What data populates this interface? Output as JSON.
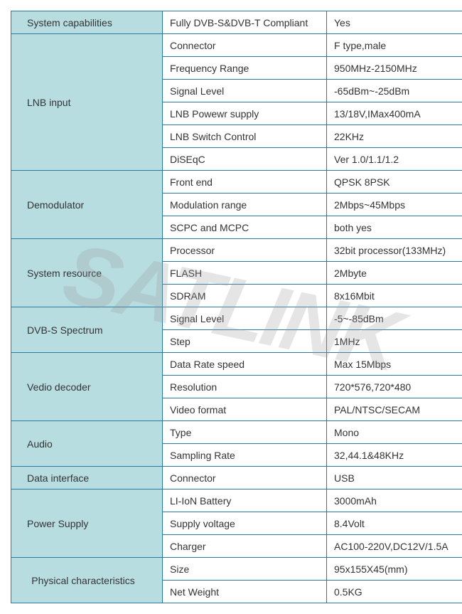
{
  "table": {
    "border_color": "#2a7aa0",
    "category_bg": "#b8dde0",
    "text_color": "#333333",
    "font_size": 14,
    "sections": [
      {
        "category": "System capabilities",
        "rows": [
          {
            "prop": "Fully DVB-S&DVB-T Compliant",
            "val": "Yes"
          }
        ]
      },
      {
        "category": "LNB input",
        "rows": [
          {
            "prop": "Connector",
            "val": "F type,male"
          },
          {
            "prop": "Frequency Range",
            "val": "950MHz-2150MHz"
          },
          {
            "prop": "Signal Level",
            "val": "-65dBm~-25dBm"
          },
          {
            "prop": "LNB Powewr supply",
            "val": "13/18V,IMax400mA"
          },
          {
            "prop": "LNB Switch Control",
            "val": "22KHz"
          },
          {
            "prop": "DiSEqC",
            "val": "Ver 1.0/1.1/1.2"
          }
        ]
      },
      {
        "category": "Demodulator",
        "rows": [
          {
            "prop": "Front end",
            "val": "QPSK 8PSK"
          },
          {
            "prop": "Modulation range",
            "val": "2Mbps~45Mbps"
          },
          {
            "prop": "SCPC and MCPC",
            "val": "both yes"
          }
        ]
      },
      {
        "category": "System resource",
        "rows": [
          {
            "prop": "Processor",
            "val": "32bit processor(133MHz)"
          },
          {
            "prop": "FLASH",
            "val": "2Mbyte"
          },
          {
            "prop": "SDRAM",
            "val": "8x16Mbit"
          }
        ]
      },
      {
        "category": "DVB-S Spectrum",
        "rows": [
          {
            "prop": "Signal Level",
            "val": "-5~-85dBm"
          },
          {
            "prop": "Step",
            "val": "1MHz"
          }
        ]
      },
      {
        "category": "Vedio decoder",
        "rows": [
          {
            "prop": "Data Rate speed",
            "val": "Max 15Mbps"
          },
          {
            "prop": "Resolution",
            "val": "720*576,720*480"
          },
          {
            "prop": "Video format",
            "val": "PAL/NTSC/SECAM"
          }
        ]
      },
      {
        "category": "Audio",
        "rows": [
          {
            "prop": "Type",
            "val": "Mono"
          },
          {
            "prop": "Sampling Rate",
            "val": "32,44.1&48KHz"
          }
        ]
      },
      {
        "category": "Data interface",
        "rows": [
          {
            "prop": "Connector",
            "val": "USB"
          }
        ]
      },
      {
        "category": "Power Supply",
        "rows": [
          {
            "prop": "LI-IoN  Battery",
            "val": "3000mAh"
          },
          {
            "prop": "Supply voltage",
            "val": "8.4Volt"
          },
          {
            "prop": "Charger",
            "val": "AC100-220V,DC12V/1.5A"
          }
        ]
      },
      {
        "category": "Physical characteristics",
        "center": true,
        "rows": [
          {
            "prop": "Size",
            "val": "95x155X45(mm)"
          },
          {
            "prop": "Net Weight",
            "val": "0.5KG"
          }
        ]
      }
    ]
  },
  "watermark_text": "SATLINK"
}
